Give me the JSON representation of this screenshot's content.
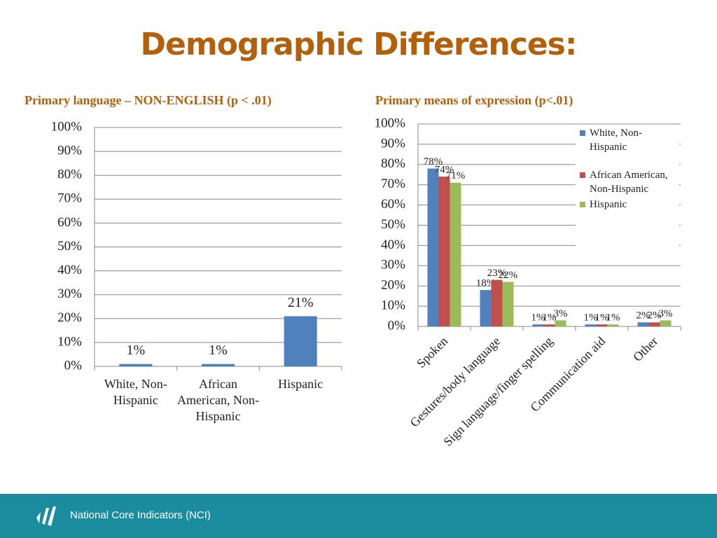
{
  "title": "Demographic Differences:",
  "footer": "National Core Indicators (NCI)",
  "chart_data": [
    {
      "type": "bar",
      "title": "Primary language – NON-ENGLISH (p < .01)",
      "categories": [
        "White, Non-Hispanic",
        "African American, Non-Hispanic",
        "Hispanic"
      ],
      "values": [
        1,
        1,
        21
      ],
      "value_labels": [
        "1%",
        "1%",
        "21%"
      ],
      "color": "#4f81bd",
      "ylim": [
        0,
        100
      ],
      "yticks": [
        {
          "value": 0,
          "label": "0%"
        },
        {
          "value": 10,
          "label": "10%"
        },
        {
          "value": 20,
          "label": "20%"
        },
        {
          "value": 30,
          "label": "30%"
        },
        {
          "value": 40,
          "label": "40%"
        },
        {
          "value": 50,
          "label": "50%"
        },
        {
          "value": 60,
          "label": "60%"
        },
        {
          "value": 70,
          "label": "70%"
        },
        {
          "value": 80,
          "label": "80%"
        },
        {
          "value": 90,
          "label": "90%"
        },
        {
          "value": 100,
          "label": "100%"
        }
      ],
      "grid": true
    },
    {
      "type": "bar",
      "title": "Primary means of expression (p<.01)",
      "categories": [
        "Spoken",
        "Gestures/body language",
        "Sign language/finger spelling",
        "Communication aid",
        "Other"
      ],
      "series": [
        {
          "name": "White, Non-Hispanic",
          "color": "#4f81bd",
          "values": [
            78,
            18,
            1,
            1,
            2
          ],
          "value_labels": [
            "78%",
            "18%",
            "1%",
            "1%",
            "2%"
          ]
        },
        {
          "name": "African American, Non-Hispanic",
          "color": "#c0504d",
          "values": [
            74,
            23,
            1,
            1,
            2
          ],
          "value_labels": [
            "74%",
            "23%",
            "1%",
            "1%",
            "2%"
          ]
        },
        {
          "name": "Hispanic",
          "color": "#9bbb59",
          "values": [
            71,
            22,
            3,
            1,
            3
          ],
          "value_labels": [
            "71%",
            "22%",
            "3%",
            "1%",
            "3%"
          ]
        }
      ],
      "ylim": [
        0,
        100
      ],
      "yticks": [
        {
          "value": 0,
          "label": "0%"
        },
        {
          "value": 10,
          "label": "10%"
        },
        {
          "value": 20,
          "label": "20%"
        },
        {
          "value": 30,
          "label": "30%"
        },
        {
          "value": 40,
          "label": "40%"
        },
        {
          "value": 50,
          "label": "50%"
        },
        {
          "value": 60,
          "label": "60%"
        },
        {
          "value": 70,
          "label": "70%"
        },
        {
          "value": 80,
          "label": "80%"
        },
        {
          "value": 90,
          "label": "90%"
        },
        {
          "value": 100,
          "label": "100%"
        }
      ],
      "grid": true,
      "legend": "top-right"
    }
  ]
}
